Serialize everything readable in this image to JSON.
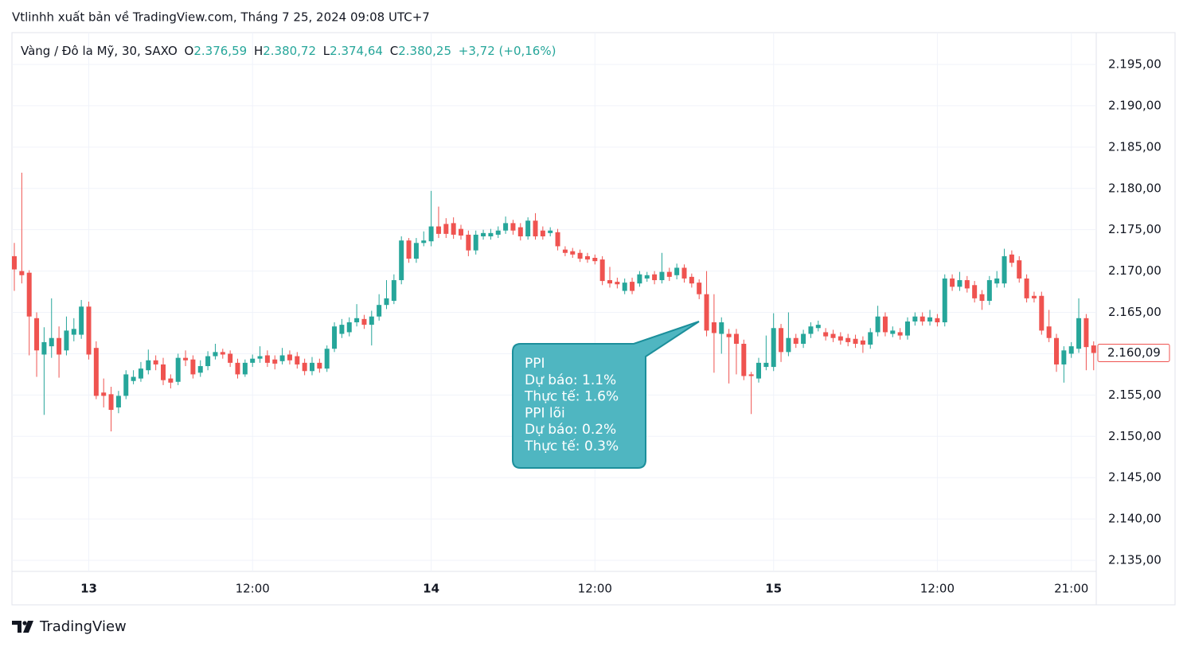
{
  "header": {
    "publisher": "Vtlinhh xuất bản về TradingView.com, Tháng 7 25, 2024 09:08 UTC+7",
    "symbol": "Vàng / Đô la Mỹ, 30, SAXO",
    "o_label": "O",
    "o_value": "2.376,59",
    "h_label": "H",
    "h_value": "2.380,72",
    "l_label": "L",
    "l_value": "2.374,64",
    "c_label": "C",
    "c_value": "2.380,25",
    "change": "+3,72 (+0,16%)"
  },
  "footer": {
    "brand": "TradingView"
  },
  "chart_data": {
    "type": "candlestick",
    "up_color": "#26a69a",
    "down_color": "#ef5350",
    "grid": true,
    "categories": [
      null,
      null,
      null,
      null,
      null,
      null,
      null,
      null,
      null,
      null,
      "13",
      null,
      null,
      null,
      null,
      null,
      null,
      null,
      null,
      null,
      null,
      null,
      null,
      null,
      null,
      null,
      null,
      null,
      null,
      null,
      null,
      null,
      "12:00",
      null,
      null,
      null,
      null,
      null,
      null,
      null,
      null,
      null,
      null,
      null,
      null,
      null,
      null,
      null,
      null,
      null,
      null,
      null,
      null,
      null,
      null,
      null,
      "14",
      null,
      null,
      null,
      null,
      null,
      null,
      null,
      null,
      null,
      null,
      null,
      null,
      null,
      null,
      null,
      null,
      null,
      null,
      null,
      null,
      null,
      "12:00",
      null,
      null,
      null,
      null,
      null,
      null,
      null,
      null,
      null,
      null,
      null,
      null,
      null,
      null,
      null,
      null,
      null,
      null,
      null,
      null,
      null,
      null,
      null,
      "15",
      null,
      null,
      null,
      null,
      null,
      null,
      null,
      null,
      null,
      null,
      null,
      null,
      null,
      null,
      null,
      null,
      null,
      null,
      null,
      null,
      null,
      "12:00",
      null,
      null,
      null,
      null,
      null,
      null,
      null,
      null,
      null,
      null,
      null,
      null,
      null,
      null,
      null,
      null,
      null,
      "21:00",
      null,
      null,
      null
    ],
    "open": [
      2171.8,
      2170.0,
      2169.8,
      2164.3,
      2159.9,
      2160.9,
      2161.9,
      2160.4,
      2162.3,
      2162.3,
      2165.7,
      2160.7,
      2155.3,
      2155.1,
      2153.5,
      2154.9,
      2156.7,
      2157.0,
      2158.0,
      2159.2,
      2158.7,
      2157.0,
      2156.6,
      2159.5,
      2159.3,
      2157.7,
      2158.5,
      2159.7,
      2160.2,
      2160.0,
      2158.9,
      2157.5,
      2158.9,
      2159.4,
      2159.8,
      2159.3,
      2159.1,
      2159.9,
      2159.7,
      2158.9,
      2157.9,
      2158.9,
      2158.2,
      2160.6,
      2162.4,
      2162.6,
      2163.8,
      2164.2,
      2163.5,
      2164.5,
      2165.9,
      2166.4,
      2168.9,
      2173.7,
      2171.5,
      2173.4,
      2173.6,
      2175.4,
      2175.7,
      2175.8,
      2175.1,
      2174.4,
      2172.5,
      2174.2,
      2174.2,
      2174.4,
      2174.9,
      2175.8,
      2175.3,
      2174.2,
      2176.1,
      2174.9,
      2174.6,
      2174.7,
      2172.6,
      2172.4,
      2172.2,
      2171.8,
      2171.6,
      2171.4,
      2168.9,
      2168.7,
      2167.6,
      2168.7,
      2168.5,
      2169.1,
      2169.6,
      2168.9,
      2169.9,
      2169.5,
      2170.4,
      2169.3,
      2168.6,
      2167.2,
      2163.8,
      2162.4,
      2162.4,
      2162.4,
      2161.2,
      2157.5,
      2157.0,
      2158.4,
      2158.4,
      2163.1,
      2160.2,
      2161.9,
      2161.2,
      2162.4,
      2163.1,
      2162.6,
      2162.4,
      2162.1,
      2161.9,
      2161.8,
      2161.6,
      2161.1,
      2162.6,
      2164.5,
      2162.4,
      2162.6,
      2162.2,
      2163.9,
      2164.5,
      2163.9,
      2164.3,
      2163.8,
      2169.1,
      2168.1,
      2168.9,
      2168.3,
      2167.2,
      2166.4,
      2168.5,
      2168.5,
      2172.0,
      2171.3,
      2169.1,
      2167.0,
      2167.0,
      2163.3,
      2161.9,
      2158.7,
      2160.0,
      2160.6,
      2164.3,
      2161.0
    ],
    "high": [
      2173.4,
      2181.9,
      2170.1,
      2165.0,
      2163.2,
      2166.7,
      2163.3,
      2164.5,
      2164.3,
      2166.5,
      2166.3,
      2161.5,
      2157.0,
      2156.0,
      2155.5,
      2158.0,
      2158.0,
      2159.0,
      2160.5,
      2159.8,
      2159.5,
      2157.5,
      2160.0,
      2160.4,
      2159.8,
      2159.2,
      2160.3,
      2161.2,
      2160.6,
      2160.4,
      2159.4,
      2159.3,
      2159.9,
      2160.9,
      2160.4,
      2159.8,
      2160.7,
      2160.4,
      2160.2,
      2159.4,
      2159.6,
      2159.4,
      2161.0,
      2163.8,
      2164.2,
      2164.4,
      2166.0,
      2164.7,
      2165.2,
      2167.2,
      2168.9,
      2169.6,
      2174.2,
      2174.0,
      2174.0,
      2174.8,
      2179.7,
      2177.8,
      2176.4,
      2176.5,
      2175.6,
      2174.9,
      2174.9,
      2175.0,
      2175.1,
      2175.4,
      2176.6,
      2176.2,
      2175.8,
      2176.5,
      2177.0,
      2175.4,
      2175.3,
      2175.1,
      2173.0,
      2172.8,
      2172.6,
      2172.2,
      2172.0,
      2171.8,
      2170.5,
      2169.2,
      2169.1,
      2169.2,
      2170.0,
      2169.9,
      2170.0,
      2172.2,
      2170.4,
      2170.9,
      2170.8,
      2169.7,
      2169.0,
      2170.0,
      2167.2,
      2164.4,
      2163.0,
      2163.0,
      2161.7,
      2157.8,
      2159.5,
      2162.2,
      2164.9,
      2163.6,
      2165.0,
      2162.4,
      2162.9,
      2163.8,
      2164.0,
      2163.1,
      2162.9,
      2162.6,
      2162.4,
      2162.3,
      2162.1,
      2163.1,
      2165.8,
      2165.0,
      2163.3,
      2163.1,
      2164.4,
      2165.0,
      2165.0,
      2165.3,
      2164.8,
      2169.6,
      2169.6,
      2169.9,
      2169.4,
      2168.8,
      2167.7,
      2169.4,
      2170.0,
      2172.7,
      2172.5,
      2171.8,
      2169.6,
      2167.5,
      2167.5,
      2165.3,
      2162.4,
      2160.9,
      2161.4,
      2166.7,
      2164.8,
      2161.5
    ],
    "low": [
      2167.6,
      2168.5,
      2159.8,
      2157.2,
      2152.6,
      2159.5,
      2157.1,
      2159.8,
      2161.5,
      2161.8,
      2159.3,
      2154.5,
      2153.5,
      2150.6,
      2152.8,
      2154.5,
      2156.3,
      2156.6,
      2157.5,
      2158.0,
      2156.2,
      2155.8,
      2156.2,
      2158.5,
      2157.0,
      2157.2,
      2158.0,
      2159.3,
      2159.4,
      2158.4,
      2157.0,
      2157.2,
      2158.4,
      2158.9,
      2158.4,
      2158.1,
      2158.7,
      2158.7,
      2158.2,
      2157.4,
      2157.4,
      2157.7,
      2157.8,
      2160.2,
      2161.9,
      2162.1,
      2163.3,
      2163.0,
      2161.0,
      2164.0,
      2165.4,
      2166.0,
      2168.4,
      2171.0,
      2171.0,
      2173.0,
      2173.0,
      2174.0,
      2174.0,
      2173.9,
      2173.8,
      2171.8,
      2172.0,
      2173.8,
      2173.8,
      2174.0,
      2174.5,
      2174.4,
      2173.7,
      2173.8,
      2173.8,
      2173.8,
      2174.2,
      2172.5,
      2171.8,
      2171.6,
      2171.1,
      2171.0,
      2170.8,
      2168.3,
      2168.0,
      2167.9,
      2167.2,
      2167.2,
      2168.1,
      2168.7,
      2168.4,
      2168.5,
      2168.8,
      2169.0,
      2168.6,
      2168.0,
      2166.6,
      2162.1,
      2157.7,
      2160.0,
      2156.4,
      2157.5,
      2156.8,
      2152.7,
      2156.5,
      2158.0,
      2157.9,
      2159.0,
      2159.7,
      2160.7,
      2160.7,
      2161.9,
      2162.7,
      2161.6,
      2161.4,
      2161.1,
      2160.9,
      2160.7,
      2160.1,
      2160.6,
      2162.1,
      2162.1,
      2162.0,
      2161.7,
      2161.7,
      2163.4,
      2163.4,
      2163.4,
      2163.3,
      2163.3,
      2167.6,
      2167.6,
      2167.4,
      2166.2,
      2165.3,
      2165.9,
      2168.0,
      2168.0,
      2170.5,
      2168.6,
      2166.2,
      2166.2,
      2162.3,
      2161.4,
      2157.8,
      2156.5,
      2159.5,
      2160.1,
      2158.0,
      2158.0
    ],
    "close": [
      2170.2,
      2169.5,
      2164.5,
      2160.4,
      2161.4,
      2161.9,
      2159.9,
      2162.8,
      2163.0,
      2165.7,
      2159.9,
      2154.9,
      2154.9,
      2153.2,
      2154.9,
      2157.5,
      2157.2,
      2158.2,
      2159.2,
      2158.7,
      2156.8,
      2156.5,
      2159.5,
      2159.2,
      2157.5,
      2158.5,
      2159.7,
      2160.2,
      2159.9,
      2158.9,
      2157.5,
      2158.9,
      2159.4,
      2159.7,
      2158.9,
      2158.8,
      2159.8,
      2159.2,
      2158.7,
      2157.9,
      2158.9,
      2158.2,
      2160.6,
      2163.3,
      2163.5,
      2163.8,
      2164.3,
      2163.5,
      2164.5,
      2165.9,
      2166.7,
      2168.9,
      2173.7,
      2171.5,
      2173.4,
      2173.7,
      2175.4,
      2174.5,
      2174.5,
      2174.4,
      2174.3,
      2172.5,
      2174.4,
      2174.6,
      2174.6,
      2174.9,
      2175.8,
      2174.9,
      2174.2,
      2176.1,
      2174.2,
      2174.2,
      2174.9,
      2173.0,
      2172.2,
      2172.0,
      2171.5,
      2171.4,
      2171.2,
      2168.8,
      2168.5,
      2168.4,
      2168.6,
      2167.6,
      2169.6,
      2169.5,
      2168.9,
      2169.9,
      2169.3,
      2170.4,
      2169.1,
      2168.5,
      2167.2,
      2162.8,
      2162.5,
      2163.8,
      2162.0,
      2161.2,
      2157.3,
      2157.3,
      2158.9,
      2158.9,
      2163.1,
      2160.2,
      2161.9,
      2161.2,
      2162.4,
      2163.3,
      2163.5,
      2162.1,
      2161.9,
      2161.6,
      2161.4,
      2161.2,
      2161.1,
      2162.6,
      2164.5,
      2162.6,
      2162.8,
      2162.2,
      2163.9,
      2164.5,
      2163.9,
      2164.4,
      2163.8,
      2169.1,
      2168.1,
      2168.9,
      2167.9,
      2166.7,
      2166.4,
      2168.9,
      2169.1,
      2171.8,
      2171.0,
      2169.1,
      2166.7,
      2166.7,
      2162.8,
      2161.9,
      2158.7,
      2160.4,
      2160.9,
      2164.3,
      2160.8,
      2160.09
    ],
    "ylim": [
      2133.66,
      2198.85
    ],
    "yticks": [
      {
        "value": 2135,
        "label": "2.135,00"
      },
      {
        "value": 2140,
        "label": "2.140,00"
      },
      {
        "value": 2145,
        "label": "2.145,00"
      },
      {
        "value": 2150,
        "label": "2.150,00"
      },
      {
        "value": 2155,
        "label": "2.155,00"
      },
      {
        "value": 2160,
        "label": "2.160,00"
      },
      {
        "value": 2165,
        "label": "2.165,00"
      },
      {
        "value": 2170,
        "label": "2.170,00"
      },
      {
        "value": 2175,
        "label": "2.175,00"
      },
      {
        "value": 2180,
        "label": "2.180,00"
      },
      {
        "value": 2185,
        "label": "2.185,00"
      },
      {
        "value": 2190,
        "label": "2.190,00"
      },
      {
        "value": 2195,
        "label": "2.195,00"
      }
    ],
    "last_price": {
      "value": 2160.09,
      "label": "2.160,09"
    },
    "annotation": [
      "PPI",
      "Dự báo: 1.1%",
      "Thực tế: 1.6%",
      "PPI lõi",
      "Dự báo: 0.2%",
      "Thực tế: 0.3%"
    ]
  }
}
